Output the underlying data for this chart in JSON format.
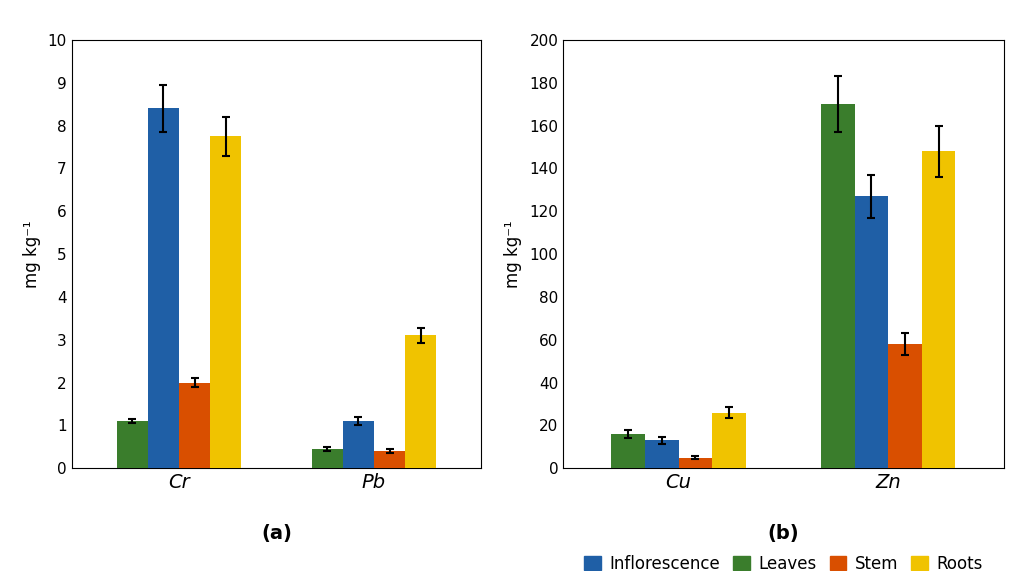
{
  "chart_a": {
    "groups": [
      "Cr",
      "Pb"
    ],
    "series": {
      "Inflorescence": {
        "color": "#1F5FA6",
        "values": [
          8.4,
          1.1
        ],
        "errors": [
          0.55,
          0.1
        ]
      },
      "Leaves": {
        "color": "#3A7D2C",
        "values": [
          1.1,
          0.45
        ],
        "errors": [
          0.05,
          0.05
        ]
      },
      "Stem": {
        "color": "#D94F00",
        "values": [
          2.0,
          0.4
        ],
        "errors": [
          0.1,
          0.05
        ]
      },
      "Roots": {
        "color": "#F0C300",
        "values": [
          7.75,
          3.1
        ],
        "errors": [
          0.45,
          0.18
        ]
      }
    },
    "ylabel": "mg kg⁻¹",
    "ylim": [
      0,
      10
    ],
    "yticks": [
      0,
      1,
      2,
      3,
      4,
      5,
      6,
      7,
      8,
      9,
      10
    ],
    "label": "(a)"
  },
  "chart_b": {
    "groups": [
      "Cu",
      "Zn"
    ],
    "series": {
      "Inflorescence": {
        "color": "#1F5FA6",
        "values": [
          13,
          127
        ],
        "errors": [
          1.5,
          10
        ]
      },
      "Leaves": {
        "color": "#3A7D2C",
        "values": [
          16,
          170
        ],
        "errors": [
          2.0,
          13
        ]
      },
      "Stem": {
        "color": "#D94F00",
        "values": [
          5,
          58
        ],
        "errors": [
          0.8,
          5
        ]
      },
      "Roots": {
        "color": "#F0C300",
        "values": [
          26,
          148
        ],
        "errors": [
          2.5,
          12
        ]
      }
    },
    "ylabel": "mg kg⁻¹",
    "ylim": [
      0,
      200
    ],
    "yticks": [
      0,
      20,
      40,
      60,
      80,
      100,
      120,
      140,
      160,
      180,
      200
    ],
    "label": "(b)"
  },
  "series_order": [
    "Leaves",
    "Inflorescence",
    "Stem",
    "Roots"
  ],
  "legend_order": [
    "Inflorescence",
    "Leaves",
    "Stem",
    "Roots"
  ],
  "bar_width": 0.16,
  "background_color": "#ffffff",
  "font_size_axis": 12,
  "font_size_group_label": 14,
  "font_size_tick": 11,
  "font_size_legend": 12,
  "font_size_sublabel": 14
}
